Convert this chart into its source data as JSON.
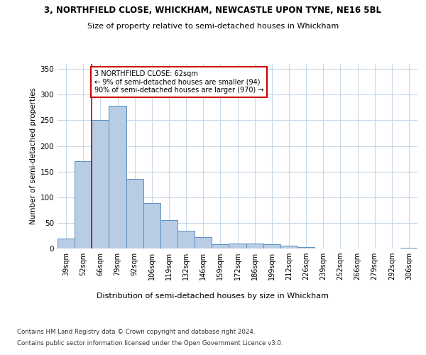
{
  "title1": "3, NORTHFIELD CLOSE, WHICKHAM, NEWCASTLE UPON TYNE, NE16 5BL",
  "title2": "Size of property relative to semi-detached houses in Whickham",
  "xlabel": "Distribution of semi-detached houses by size in Whickham",
  "ylabel": "Number of semi-detached properties",
  "categories": [
    "39sqm",
    "52sqm",
    "66sqm",
    "79sqm",
    "92sqm",
    "106sqm",
    "119sqm",
    "132sqm",
    "146sqm",
    "159sqm",
    "172sqm",
    "186sqm",
    "199sqm",
    "212sqm",
    "226sqm",
    "239sqm",
    "252sqm",
    "266sqm",
    "279sqm",
    "292sqm",
    "306sqm"
  ],
  "values": [
    19,
    170,
    251,
    278,
    136,
    89,
    55,
    35,
    22,
    8,
    10,
    10,
    8,
    5,
    3,
    0,
    0,
    0,
    0,
    0,
    2
  ],
  "bar_color": "#b8cce4",
  "bar_edge_color": "#5a8fc0",
  "annotation_text": "3 NORTHFIELD CLOSE: 62sqm\n← 9% of semi-detached houses are smaller (94)\n90% of semi-detached houses are larger (970) →",
  "annotation_box_color": "#ffffff",
  "annotation_box_edge_color": "#cc0000",
  "vline_color": "#cc0000",
  "vline_x": 1.5,
  "grid_color": "#c8d8e8",
  "background_color": "#ffffff",
  "footer1": "Contains HM Land Registry data © Crown copyright and database right 2024.",
  "footer2": "Contains public sector information licensed under the Open Government Licence v3.0.",
  "ylim": [
    0,
    360
  ],
  "yticks": [
    0,
    50,
    100,
    150,
    200,
    250,
    300,
    350
  ]
}
